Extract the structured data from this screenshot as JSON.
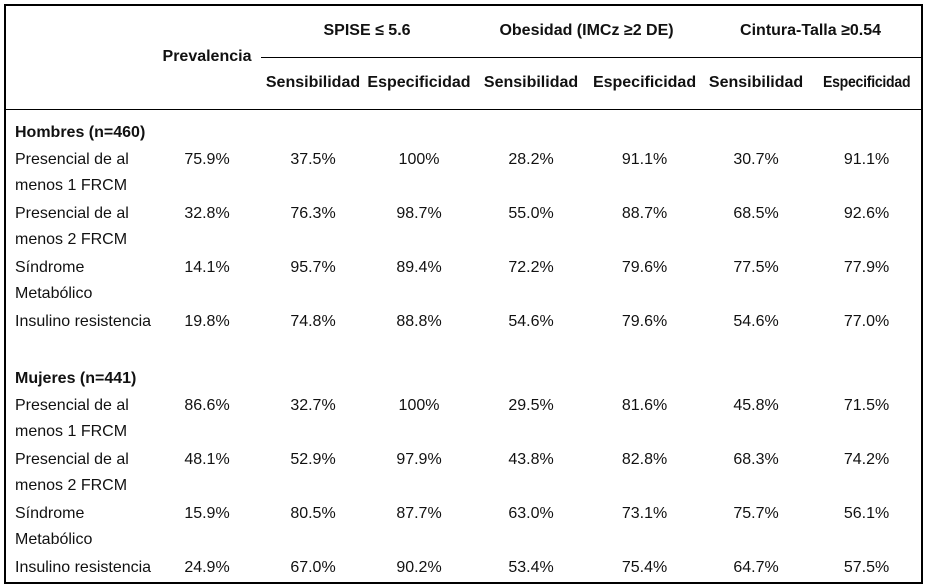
{
  "page": {
    "background": "#ffffff",
    "text_color": "#111111",
    "border_color": "#000000"
  },
  "table": {
    "prevalencia_header": "Prevalencia",
    "groups": [
      "SPISE ≤ 5.6",
      "Obesidad (IMCz ≥2 DE)",
      "Cintura-Talla ≥0.54"
    ],
    "subheaders": [
      "Sensibilidad",
      "Especificidad",
      "Sensibilidad",
      "Especificidad",
      "Sensibilidad",
      "Especificidad"
    ],
    "sections": [
      {
        "title": "Hombres (n=460)",
        "rows": [
          {
            "label": "Presencial de al\nmenos 1 FRCM",
            "values": [
              "75.9%",
              "37.5%",
              "100%",
              "28.2%",
              "91.1%",
              "30.7%",
              "91.1%"
            ]
          },
          {
            "label": "Presencial de al\nmenos 2 FRCM",
            "values": [
              "32.8%",
              "76.3%",
              "98.7%",
              "55.0%",
              "88.7%",
              "68.5%",
              "92.6%"
            ]
          },
          {
            "label": "Síndrome Metabólico",
            "values": [
              "14.1%",
              "95.7%",
              "89.4%",
              "72.2%",
              "79.6%",
              "77.5%",
              "77.9%"
            ]
          },
          {
            "label": "Insulino resistencia",
            "values": [
              "19.8%",
              "74.8%",
              "88.8%",
              "54.6%",
              "79.6%",
              "54.6%",
              "77.0%"
            ]
          }
        ]
      },
      {
        "title": "Mujeres (n=441)",
        "rows": [
          {
            "label": "Presencial de al\nmenos 1 FRCM",
            "values": [
              "86.6%",
              "32.7%",
              "100%",
              "29.5%",
              "81.6%",
              "45.8%",
              "71.5%"
            ]
          },
          {
            "label": "Presencial de al\nmenos 2 FRCM",
            "values": [
              "48.1%",
              "52.9%",
              "97.9%",
              "43.8%",
              "82.8%",
              "68.3%",
              "74.2%"
            ]
          },
          {
            "label": "Síndrome Metabólico",
            "values": [
              "15.9%",
              "80.5%",
              "87.7%",
              "63.0%",
              "73.1%",
              "75.7%",
              "56.1%"
            ]
          },
          {
            "label": "Insulino resistencia",
            "values": [
              "24.9%",
              "67.0%",
              "90.2%",
              "53.4%",
              "75.4%",
              "64.7%",
              "57.5%"
            ]
          }
        ]
      }
    ]
  }
}
